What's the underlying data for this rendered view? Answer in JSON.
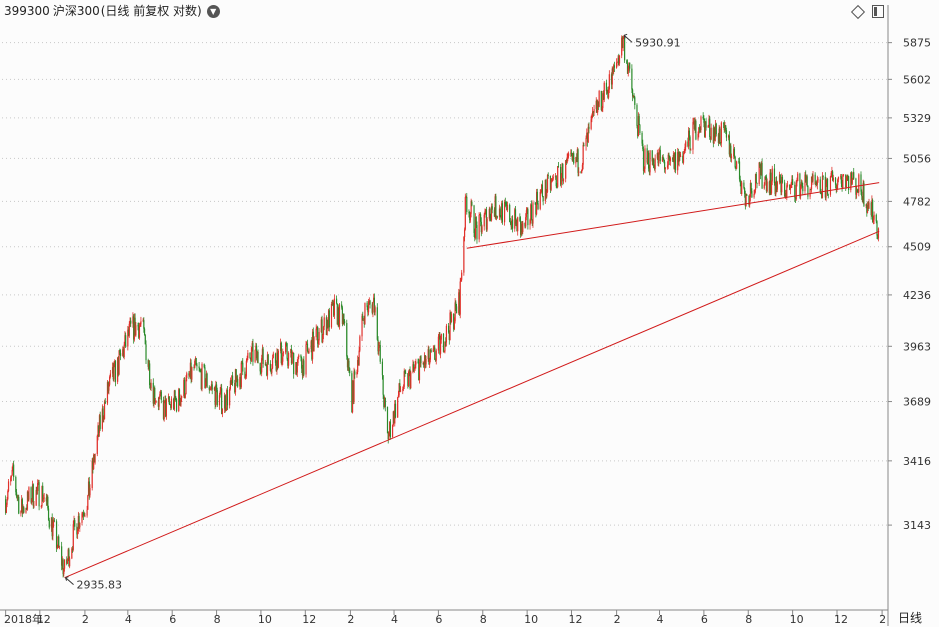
{
  "header": {
    "code": "399300",
    "name": "沪深300",
    "mode": "(日线 前复权 对数)"
  },
  "period_label": "日线",
  "colors": {
    "up": "#e0302a",
    "down": "#2a8a2a",
    "trend": "#d11a1a",
    "grid": "#c8c8c8"
  },
  "chart_data": {
    "type": "candlestick",
    "yscale": "log",
    "yticks": [
      5875,
      5602,
      5329,
      5056,
      4782,
      4509,
      4236,
      3963,
      3689,
      3416,
      3143
    ],
    "ylim": [
      2830,
      6050
    ],
    "xtick_labels": [
      "2018年",
      "12",
      "2",
      "4",
      "6",
      "8",
      "10",
      "12",
      "2",
      "4",
      "6",
      "8",
      "10",
      "12",
      "2",
      "4",
      "6",
      "8",
      "10",
      "12",
      "2"
    ],
    "annotations": [
      {
        "text": "5930.91",
        "type": "high",
        "date": "2021-02-10",
        "value": 5930.91
      },
      {
        "text": "2935.83",
        "type": "low",
        "date": "2019-01-04",
        "value": 2935.83
      }
    ],
    "trendlines": [
      {
        "from": [
          "2019-01-04",
          2935.83
        ],
        "to": [
          "2022-01-28",
          4600
        ]
      },
      {
        "from": [
          "2020-07-10",
          4500
        ],
        "to": [
          "2022-01-28",
          4900
        ]
      }
    ],
    "close_series": [
      [
        "2018-10-15",
        3250
      ],
      [
        "2018-10-25",
        3350
      ],
      [
        "2018-11-05",
        3200
      ],
      [
        "2018-11-20",
        3270
      ],
      [
        "2018-12-05",
        3280
      ],
      [
        "2018-12-20",
        3120
      ],
      [
        "2019-01-04",
        2960
      ],
      [
        "2019-01-20",
        3150
      ],
      [
        "2019-02-05",
        3250
      ],
      [
        "2019-02-20",
        3550
      ],
      [
        "2019-03-05",
        3750
      ],
      [
        "2019-03-20",
        3880
      ],
      [
        "2019-04-05",
        4050
      ],
      [
        "2019-04-20",
        4080
      ],
      [
        "2019-05-05",
        3750
      ],
      [
        "2019-05-20",
        3650
      ],
      [
        "2019-06-10",
        3700
      ],
      [
        "2019-07-01",
        3850
      ],
      [
        "2019-07-20",
        3780
      ],
      [
        "2019-08-10",
        3680
      ],
      [
        "2019-08-30",
        3800
      ],
      [
        "2019-09-20",
        3920
      ],
      [
        "2019-10-10",
        3880
      ],
      [
        "2019-11-01",
        3930
      ],
      [
        "2019-11-25",
        3860
      ],
      [
        "2019-12-15",
        4000
      ],
      [
        "2020-01-10",
        4150
      ],
      [
        "2020-01-22",
        4100
      ],
      [
        "2020-02-03",
        3700
      ],
      [
        "2020-02-20",
        4150
      ],
      [
        "2020-03-05",
        4200
      ],
      [
        "2020-03-23",
        3520
      ],
      [
        "2020-04-10",
        3750
      ],
      [
        "2020-05-01",
        3850
      ],
      [
        "2020-05-25",
        3900
      ],
      [
        "2020-06-15",
        4050
      ],
      [
        "2020-06-30",
        4200
      ],
      [
        "2020-07-09",
        4800
      ],
      [
        "2020-07-24",
        4600
      ],
      [
        "2020-08-15",
        4750
      ],
      [
        "2020-09-05",
        4700
      ],
      [
        "2020-09-25",
        4600
      ],
      [
        "2020-10-15",
        4800
      ],
      [
        "2020-11-05",
        4900
      ],
      [
        "2020-11-25",
        5000
      ],
      [
        "2020-12-15",
        5050
      ],
      [
        "2021-01-05",
        5400
      ],
      [
        "2021-01-25",
        5600
      ],
      [
        "2021-02-10",
        5900
      ],
      [
        "2021-02-26",
        5400
      ],
      [
        "2021-03-10",
        5050
      ],
      [
        "2021-03-30",
        5050
      ],
      [
        "2021-04-15",
        5000
      ],
      [
        "2021-05-05",
        5100
      ],
      [
        "2021-05-25",
        5300
      ],
      [
        "2021-06-10",
        5250
      ],
      [
        "2021-06-30",
        5200
      ],
      [
        "2021-07-15",
        5050
      ],
      [
        "2021-07-28",
        4800
      ],
      [
        "2021-08-15",
        4950
      ],
      [
        "2021-09-05",
        4900
      ],
      [
        "2021-09-25",
        4850
      ],
      [
        "2021-10-15",
        4900
      ],
      [
        "2021-11-05",
        4850
      ],
      [
        "2021-11-25",
        4900
      ],
      [
        "2021-12-10",
        4950
      ],
      [
        "2021-12-20",
        4920
      ],
      [
        "2022-01-05",
        4850
      ],
      [
        "2022-01-20",
        4700
      ],
      [
        "2022-01-28",
        4600
      ]
    ]
  }
}
